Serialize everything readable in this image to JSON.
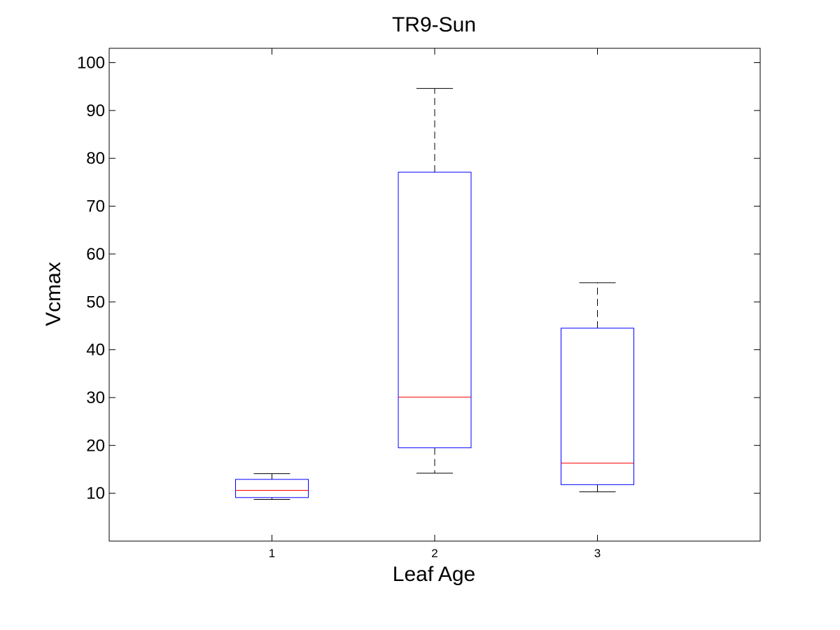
{
  "chart_data": {
    "type": "box",
    "title": "TR9-Sun",
    "xlabel": "Leaf Age",
    "ylabel": "Vcmax",
    "categories": [
      "1",
      "2",
      "3"
    ],
    "ylim": [
      0,
      103
    ],
    "yticks": [
      10,
      20,
      30,
      40,
      50,
      60,
      70,
      80,
      90,
      100
    ],
    "grid": false,
    "boxes": [
      {
        "category": "1",
        "whisker_low": 8.7,
        "q1": 9.1,
        "median": 10.6,
        "q3": 12.9,
        "whisker_high": 14.1
      },
      {
        "category": "2",
        "whisker_low": 14.2,
        "q1": 19.5,
        "median": 30.1,
        "q3": 77.1,
        "whisker_high": 94.6
      },
      {
        "category": "3",
        "whisker_low": 10.3,
        "q1": 11.8,
        "median": 16.3,
        "q3": 44.5,
        "whisker_high": 54.0
      }
    ],
    "colors": {
      "box": "#0000ff",
      "median": "#ff0000",
      "whisker": "#000000",
      "axes": "#000000"
    }
  }
}
